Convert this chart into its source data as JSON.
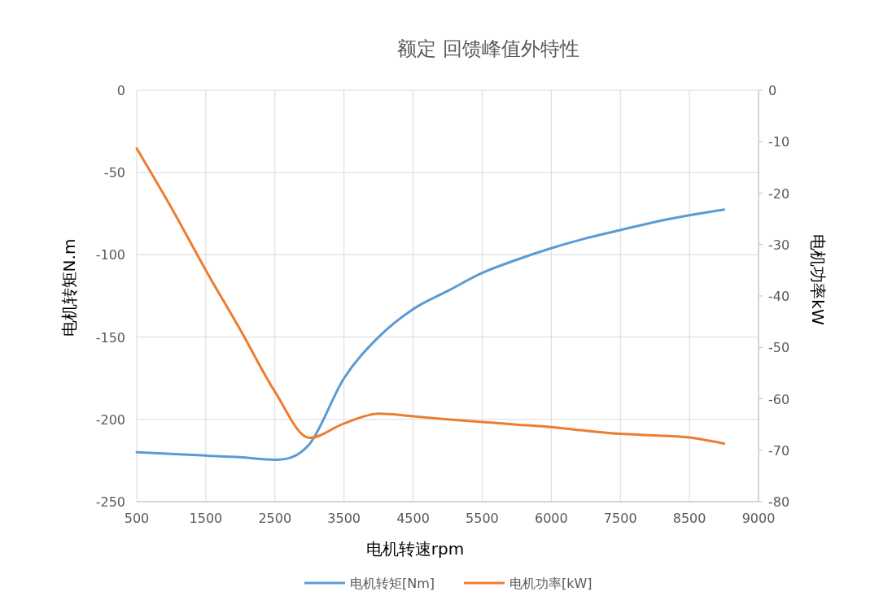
{
  "chart_data": {
    "type": "line",
    "title": "额定 回馈峰值外特性",
    "xlabel": "电机转速rpm",
    "ylabel": "电机转矩N.m",
    "y2label": "电机功率kW",
    "categories": [
      "500",
      null,
      "1500",
      null,
      "2500",
      null,
      "3500",
      null,
      "4500",
      null,
      "5500",
      null,
      "6000",
      null,
      "7500",
      null,
      "8500",
      null,
      "9000"
    ],
    "ylim": [
      -250,
      0
    ],
    "yticks": [
      -250,
      -200,
      -150,
      -100,
      -50,
      0
    ],
    "y2lim": [
      -80,
      0
    ],
    "y2ticks": [
      -80,
      -70,
      -60,
      -50,
      -40,
      -30,
      -20,
      -10,
      0
    ],
    "grid": true,
    "legend": "bottom",
    "line_style": "solid",
    "marker": "none",
    "series": [
      {
        "name": "电机转矩[Nm]",
        "color": "#5b9bd5",
        "values": [
          -220,
          -221,
          -222,
          -223,
          -224.5,
          -215,
          -175,
          -150,
          -133,
          -122,
          -111,
          -103,
          -96,
          -90,
          -85,
          -80,
          -76,
          -72.5,
          null
        ]
      },
      {
        "name": "电机功率[kW]",
        "color": "#ed7d31",
        "axis": "y2",
        "values": [
          -11.3,
          -22.8,
          -35,
          -46.6,
          -58.6,
          -67.6,
          -64.8,
          -62.9,
          -63.4,
          -64,
          -64.5,
          -65,
          -65.5,
          -66.2,
          -66.8,
          -67.1,
          -67.5,
          -68.7,
          null
        ]
      }
    ]
  }
}
